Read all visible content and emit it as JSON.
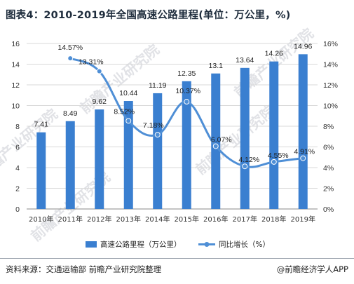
{
  "title": "图表4：2010-2019年全国高速公路里程(单位：万公里，%)",
  "source": "资料来源：交通运输部  前瞻产业研究院整理",
  "credit": "@前瞻经济学人APP",
  "watermark": "前瞻产业研究院",
  "colors": {
    "bar": "#3a7fd0",
    "line": "#4f8fd6",
    "grid": "#d9d9d9",
    "axis": "#888888"
  },
  "chart_data": {
    "type": "bar",
    "categories": [
      "2010年",
      "2011年",
      "2012年",
      "2013年",
      "2014年",
      "2015年",
      "2016年",
      "2017年",
      "2018年",
      "2019年"
    ],
    "series": [
      {
        "name": "高速公路里程（万公里）",
        "type": "bar",
        "axis": "left",
        "values": [
          7.41,
          8.49,
          9.62,
          10.44,
          11.19,
          12.35,
          13.1,
          13.64,
          14.26,
          14.96
        ],
        "labels": [
          "7.41",
          "8.49",
          "9.62",
          "10.44",
          "11.19",
          "12.35",
          "13.1",
          "13.64",
          "14.26",
          "14.96"
        ]
      },
      {
        "name": "同比增长（%）",
        "type": "line",
        "axis": "right",
        "values": [
          null,
          14.57,
          13.31,
          8.52,
          7.18,
          10.37,
          6.07,
          4.12,
          4.55,
          4.91
        ],
        "labels": [
          "",
          "14.57%",
          "13.31%",
          "8.52%",
          "7.18%",
          "10.37%",
          "6.07%",
          "4.12%",
          "4.55%",
          "4.91%"
        ]
      }
    ],
    "y_left": {
      "min": 0,
      "max": 16,
      "ticks": [
        "0",
        "2",
        "4",
        "6",
        "8",
        "10",
        "12",
        "14",
        "16"
      ]
    },
    "y_right": {
      "min": 0,
      "max": 16,
      "ticks": [
        "0%",
        "2%",
        "4%",
        "6%",
        "8%",
        "10%",
        "12%",
        "14%",
        "16%"
      ]
    },
    "grid": true,
    "legend_position": "bottom"
  }
}
